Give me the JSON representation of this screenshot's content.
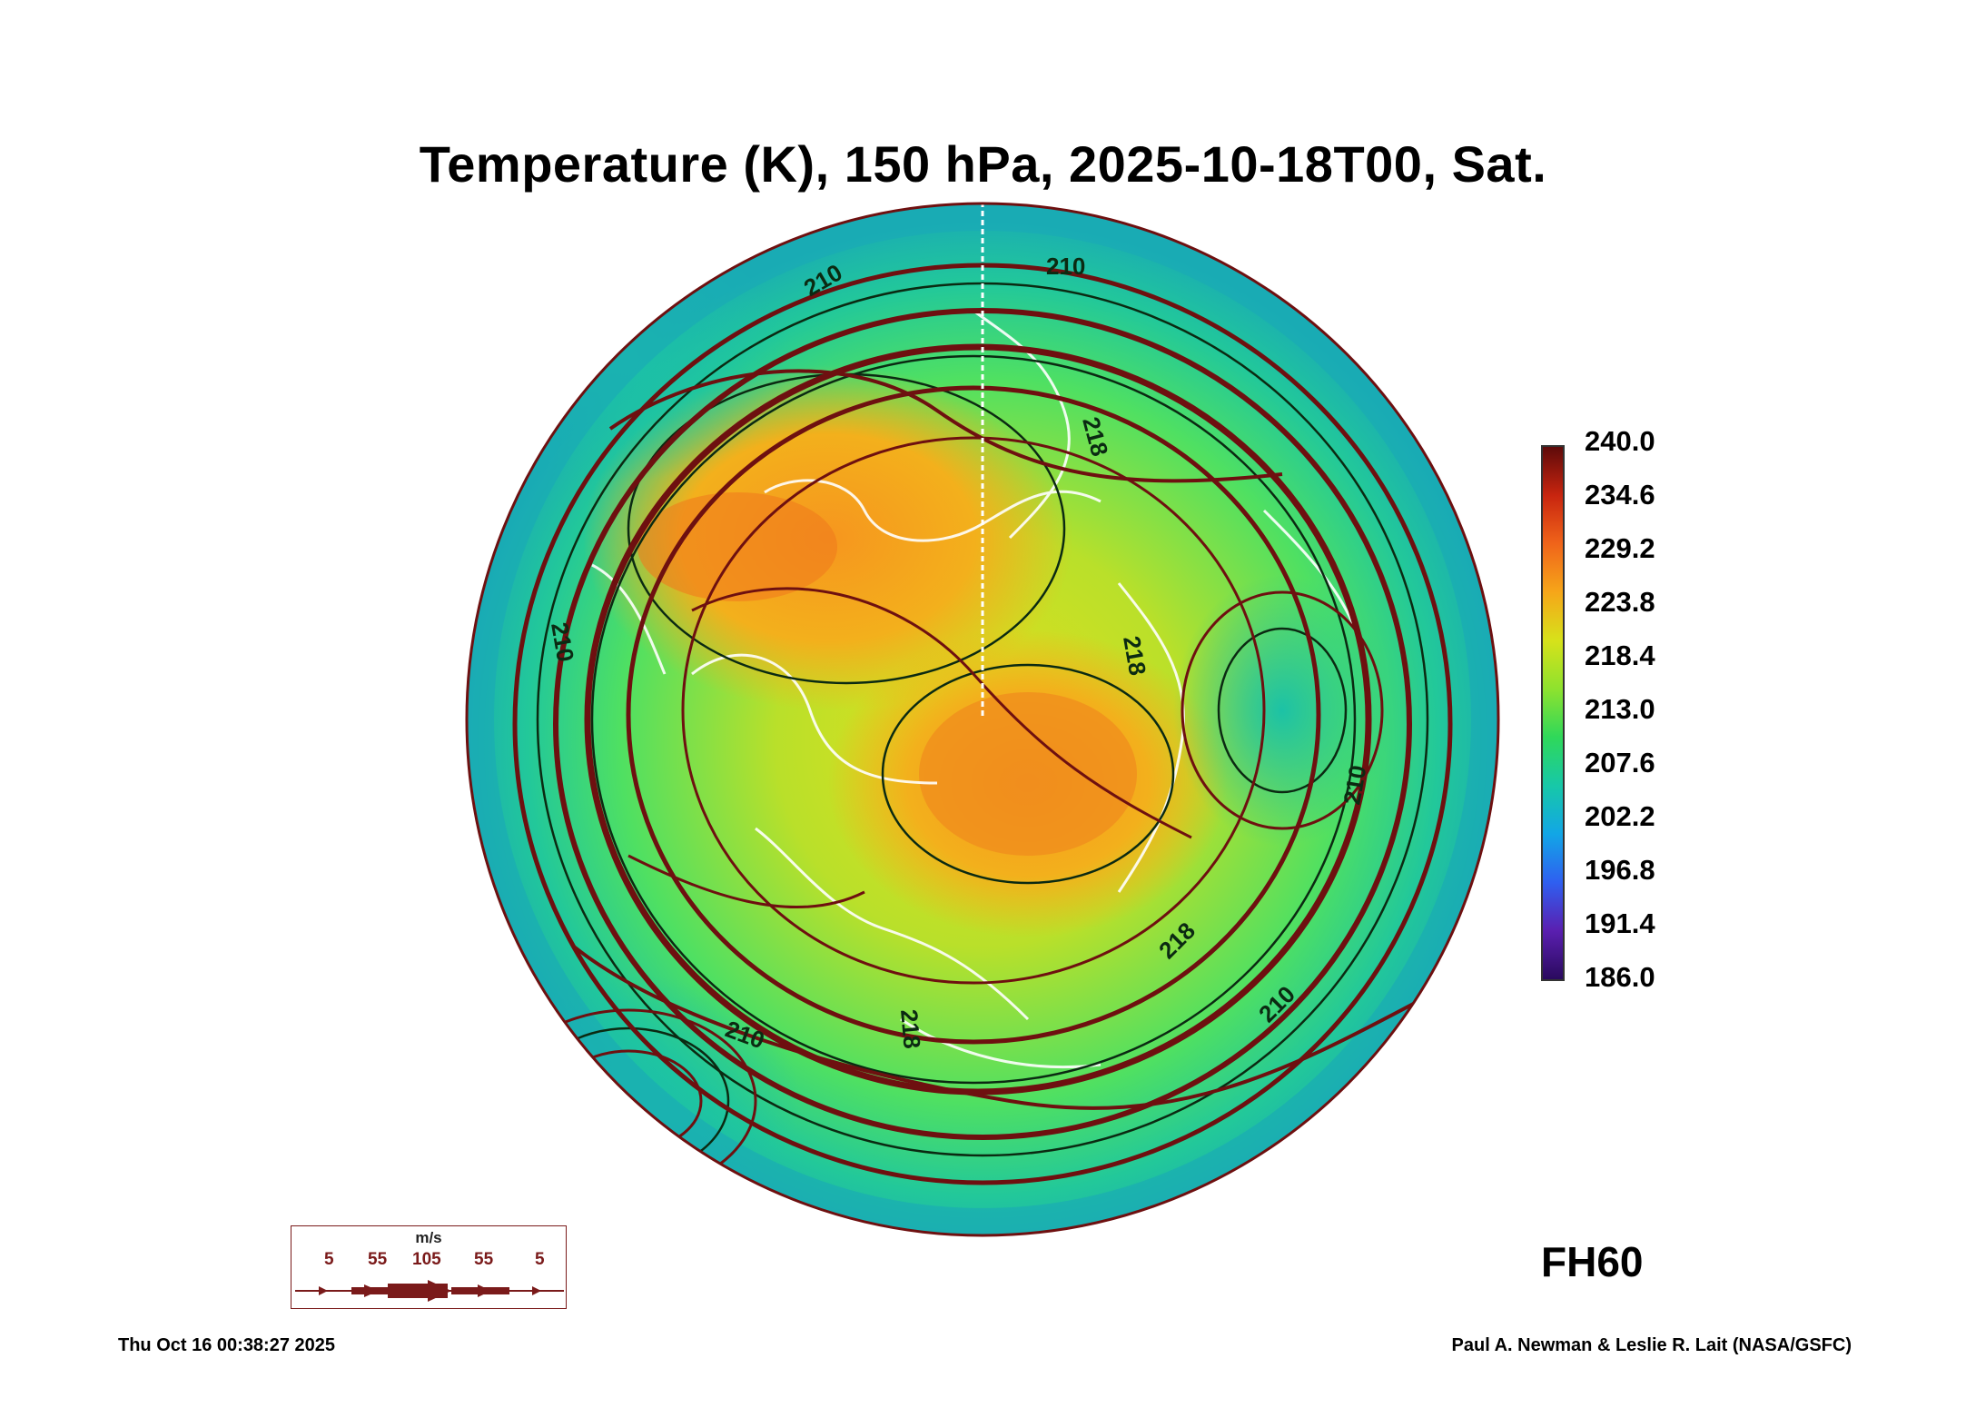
{
  "title": "Temperature (K), 150 hPa, 2025-10-18T00, Sat.",
  "colorbar": {
    "labels": [
      "240.0",
      "234.6",
      "229.2",
      "223.8",
      "218.4",
      "213.0",
      "207.6",
      "202.2",
      "196.8",
      "191.4",
      "186.0"
    ],
    "min": 186.0,
    "max": 240.0,
    "colors": [
      "#2a0a5e",
      "#5a1fb0",
      "#2f5ff0",
      "#12a6e6",
      "#17c8a8",
      "#2fd85a",
      "#8ee22e",
      "#d7e21a",
      "#f6a619",
      "#f0641a",
      "#c8250f",
      "#5e0a0a"
    ]
  },
  "contour_labels": [
    "210",
    "210",
    "210",
    "210",
    "218",
    "218",
    "218",
    "218",
    "210",
    "210"
  ],
  "forecast_hour": "FH60",
  "wind_scale": {
    "unit": "m/s",
    "values": [
      "5",
      "55",
      "105",
      "55",
      "5"
    ],
    "color": "#7a1a1a"
  },
  "footer": {
    "timestamp": "Thu Oct 16 00:38:27 2025",
    "credit": "Paul A. Newman & Leslie R. Lait (NASA/GSFC)"
  }
}
